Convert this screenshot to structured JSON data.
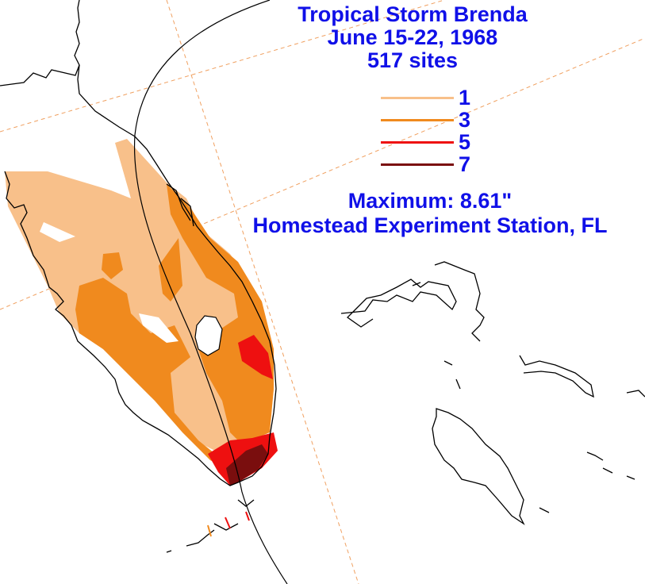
{
  "title": {
    "line1": "Tropical Storm Brenda",
    "line2": "June 15-22, 1968",
    "line3": "517 sites"
  },
  "legend": {
    "items": [
      {
        "label": "1",
        "color": "#f8c08a"
      },
      {
        "label": "3",
        "color": "#f08a1e"
      },
      {
        "label": "5",
        "color": "#ee1010"
      },
      {
        "label": "7",
        "color": "#7a0e0e"
      }
    ]
  },
  "maximum": {
    "value_text": "Maximum: 8.61\"",
    "station": "Homestead Experiment Station, FL"
  },
  "colors": {
    "text": "#1010e8",
    "coast": "#000000",
    "storm_track": "#000000",
    "grid": "#f0a060",
    "rain_1": "#f8c08a",
    "rain_3": "#f08a1e",
    "rain_5": "#ee1010",
    "rain_7": "#7a0e0e"
  }
}
